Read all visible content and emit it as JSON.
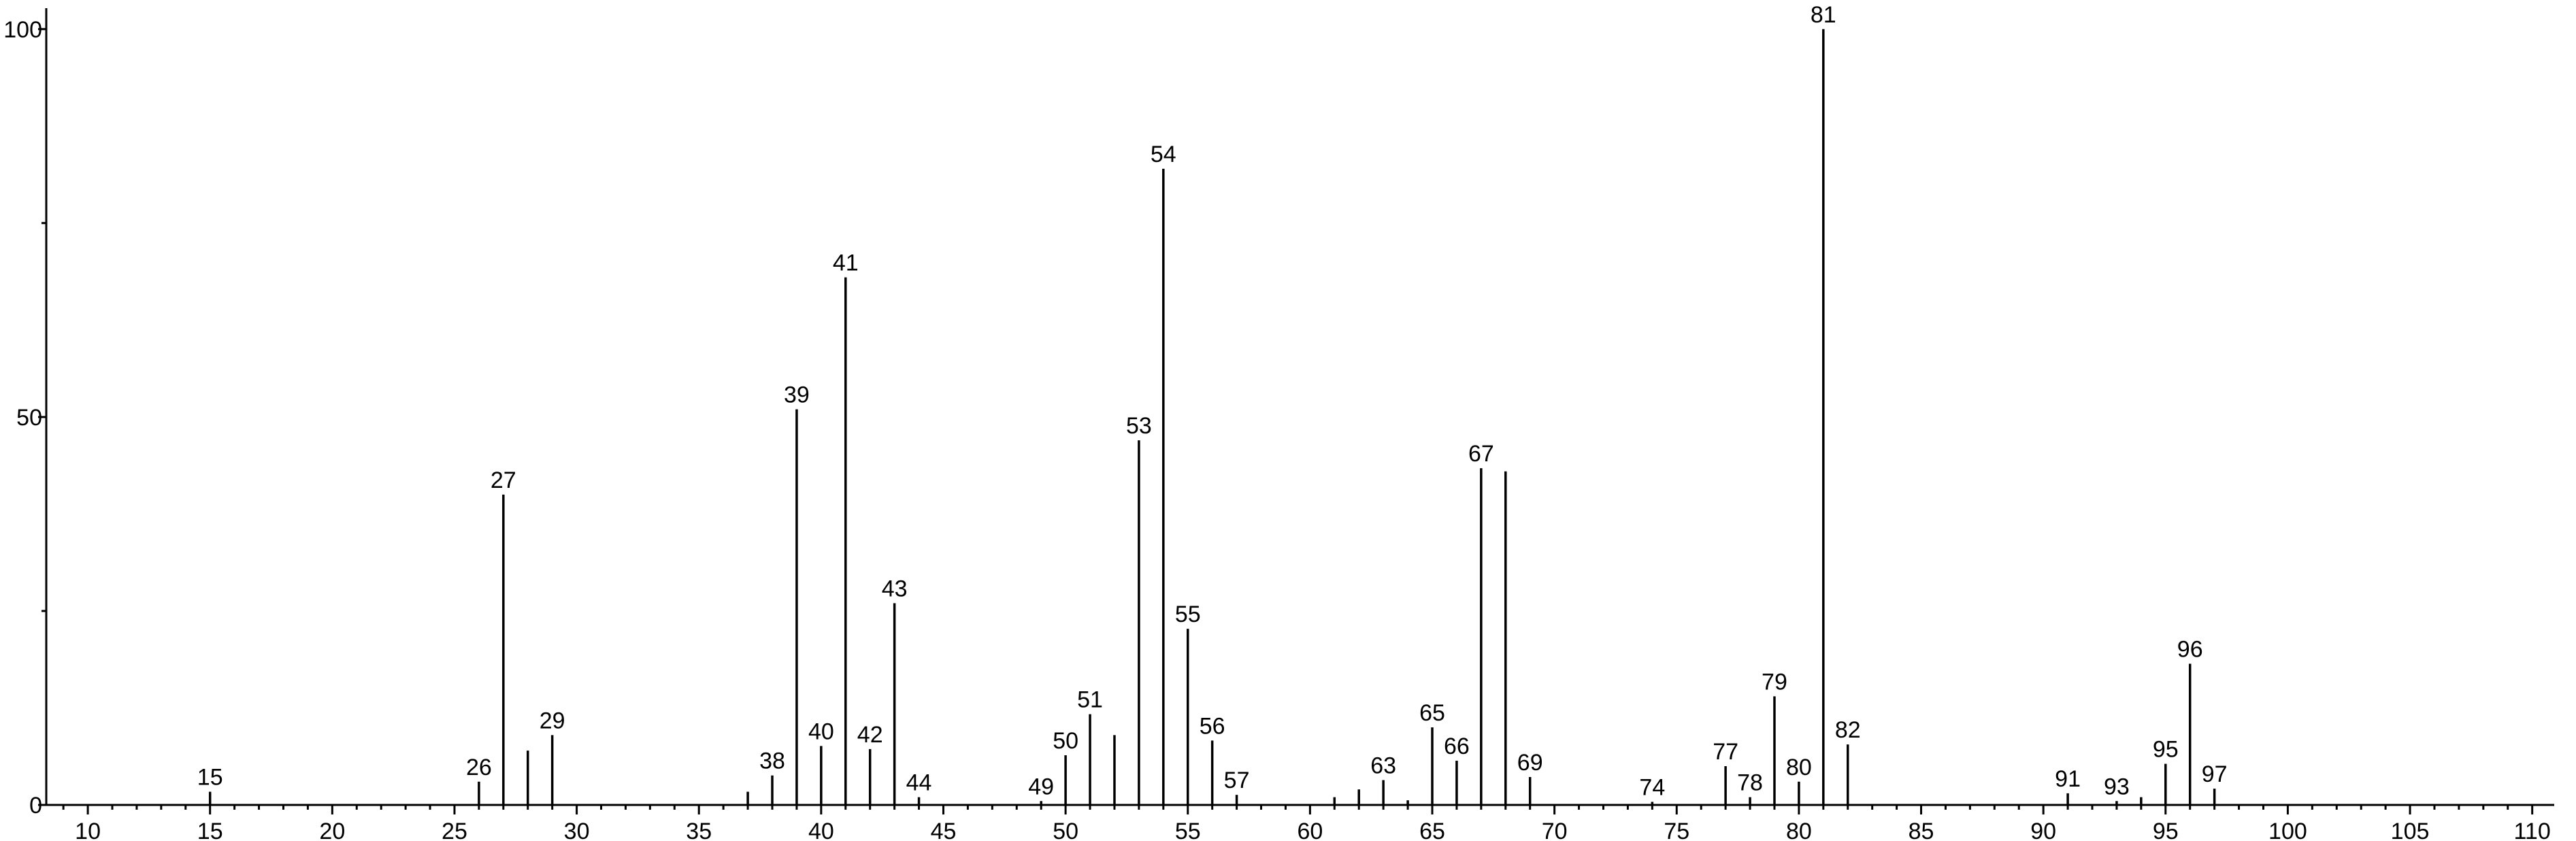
{
  "chart_data": {
    "type": "stick",
    "x": [
      15,
      26,
      27,
      28,
      29,
      37,
      38,
      39,
      40,
      41,
      42,
      43,
      44,
      49,
      50,
      51,
      52,
      53,
      54,
      55,
      56,
      57,
      61,
      62,
      63,
      64,
      65,
      66,
      67,
      68,
      69,
      74,
      77,
      78,
      79,
      80,
      81,
      82,
      91,
      93,
      94,
      95,
      96,
      97
    ],
    "values": [
      1.7,
      3,
      40,
      7,
      9,
      1.7,
      3.8,
      51,
      7.6,
      68,
      7.2,
      26,
      1,
      0.5,
      6.4,
      11.7,
      9,
      47,
      82,
      22.7,
      8.3,
      1.3,
      1,
      2,
      3.2,
      0.6,
      10,
      5.7,
      43.4,
      43,
      3.6,
      0.4,
      5,
      1,
      14,
      3,
      100,
      7.8,
      1.5,
      0.5,
      1,
      5.3,
      18.2,
      2.1
    ],
    "labels": [
      "15",
      "26",
      "27",
      null,
      "29",
      null,
      "38",
      "39",
      "40",
      "41",
      "42",
      "43",
      "44",
      "49",
      "50",
      "51",
      null,
      "53",
      "54",
      "55",
      "56",
      "57",
      null,
      null,
      "63",
      null,
      "65",
      "66",
      "67",
      null,
      "69",
      "74",
      "77",
      "78",
      "79",
      "80",
      "81",
      "82",
      "91",
      "93",
      null,
      "95",
      "96",
      "97"
    ],
    "color": "#000000",
    "xlim": [
      8.3,
      110.9
    ],
    "ylim": [
      0,
      102.7
    ],
    "xticks": [
      10,
      15,
      20,
      25,
      30,
      35,
      40,
      45,
      50,
      55,
      60,
      65,
      70,
      75,
      80,
      85,
      90,
      95,
      100,
      105,
      110
    ],
    "xminorticks": [
      9,
      11,
      12,
      13,
      14,
      16,
      17,
      18,
      19,
      21,
      22,
      23,
      24,
      26,
      27,
      28,
      29,
      31,
      32,
      33,
      34,
      36,
      37,
      38,
      39,
      41,
      42,
      43,
      44,
      46,
      47,
      48,
      49,
      51,
      52,
      53,
      54,
      56,
      57,
      58,
      59,
      61,
      62,
      63,
      64,
      66,
      67,
      68,
      69,
      71,
      72,
      73,
      74,
      76,
      77,
      78,
      79,
      81,
      82,
      83,
      84,
      86,
      87,
      88,
      89,
      91,
      92,
      93,
      94,
      96,
      97,
      98,
      99,
      101,
      102,
      103,
      104,
      106,
      107,
      108,
      109
    ],
    "yticks": [
      0,
      50,
      100
    ],
    "yminorticks": [
      25,
      75
    ]
  }
}
